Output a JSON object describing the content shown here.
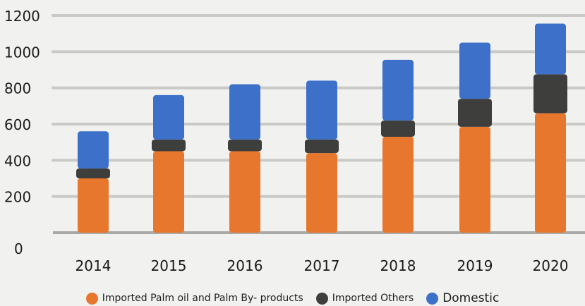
{
  "chart_data": {
    "type": "bar",
    "stacked": true,
    "categories": [
      "2014",
      "2015",
      "2016",
      "2017",
      "2018",
      "2019",
      "2020"
    ],
    "series": [
      {
        "name": "Imported Palm oil and Palm By- products",
        "color": "#e8772e",
        "values": [
          300,
          450,
          450,
          440,
          530,
          585,
          660
        ]
      },
      {
        "name": "Imported Others",
        "color": "#3e3e3c",
        "values": [
          55,
          65,
          65,
          75,
          90,
          155,
          215
        ]
      },
      {
        "name": "Domestic",
        "color": "#3c70c9",
        "values": [
          205,
          245,
          305,
          325,
          335,
          310,
          280
        ]
      }
    ],
    "y_ticks": [
      "0",
      "200",
      "400",
      "600",
      "800",
      "1000",
      "1200"
    ],
    "ylim": [
      0,
      1200
    ],
    "grid": true,
    "legend_position": "bottom"
  }
}
